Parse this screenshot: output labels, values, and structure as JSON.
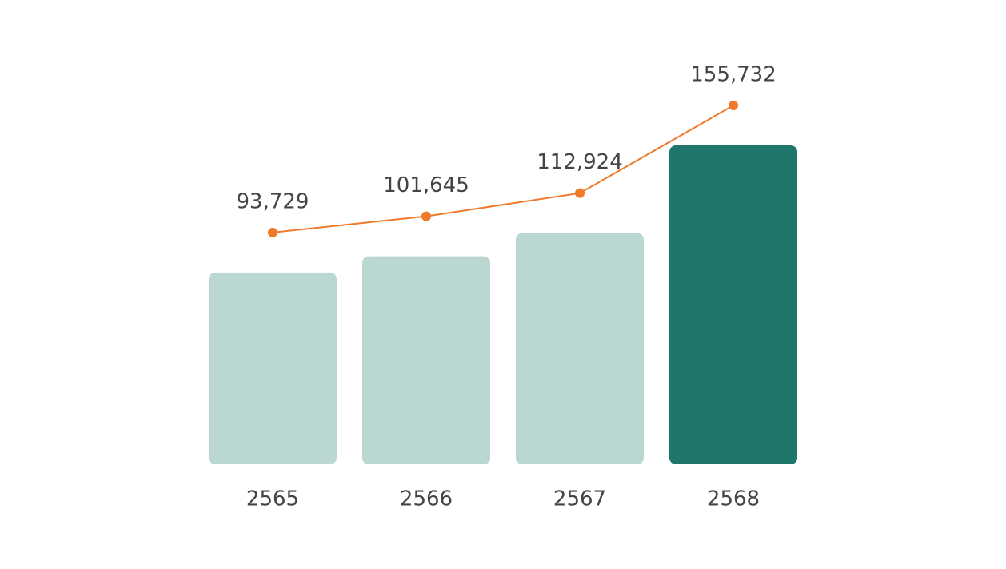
{
  "chart_data": {
    "type": "bar",
    "categories": [
      "2565",
      "2566",
      "2567",
      "2568"
    ],
    "values": [
      93729,
      101645,
      112924,
      155732
    ],
    "value_labels": [
      "93,729",
      "101,645",
      "112,924",
      "155,732"
    ],
    "colors": [
      "#bad8d1",
      "#bad8d1",
      "#bad8d1",
      "#1f776b"
    ],
    "line_color": "#f07a2a"
  }
}
